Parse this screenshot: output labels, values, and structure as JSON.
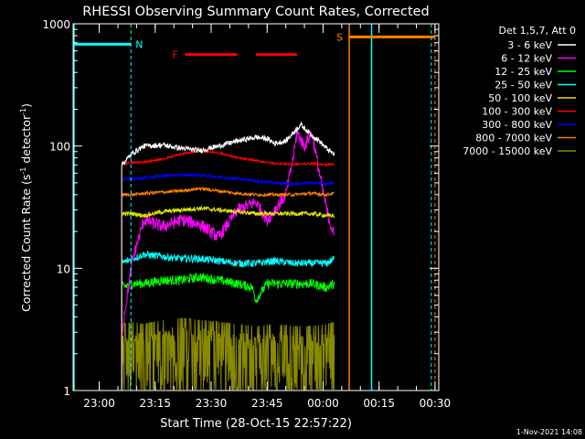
{
  "chart_data": {
    "type": "line",
    "title": "RHESSI Observing Summary Count Rates, Corrected",
    "xlabel": "Start Time (28-Oct-15 22:57:22)",
    "ylabel": "Corrected Count Rate (s⁻¹ detector⁻¹)",
    "ylabel_main": "Corrected Count Rate (s",
    "ylabel_sup1": "-1",
    "ylabel_mid": " detector",
    "ylabel_sup2": "-1",
    "ylabel_end": ")",
    "y_scale": "log",
    "xlim_min": [
      -4,
      94
    ],
    "ylim": [
      1,
      1000
    ],
    "x_ticks": [
      {
        "min": 3,
        "label": "23:00"
      },
      {
        "min": 18,
        "label": "23:15"
      },
      {
        "min": 33,
        "label": "23:30"
      },
      {
        "min": 48,
        "label": "23:45"
      },
      {
        "min": 63,
        "label": "00:00"
      },
      {
        "min": 78,
        "label": "00:15"
      },
      {
        "min": 93,
        "label": "00:30"
      }
    ],
    "y_ticks": [
      {
        "value": 1,
        "label": "1"
      },
      {
        "value": 10,
        "label": "10"
      },
      {
        "value": 100,
        "label": "100"
      },
      {
        "value": 1000,
        "label": "1000"
      }
    ],
    "legend_title": "Det 1,5,7, Att 0",
    "legend_position": "right",
    "series": [
      {
        "name": "3 - 6 keV",
        "color": "#ffffff",
        "x": [
          9,
          12,
          15,
          20,
          25,
          30,
          35,
          40,
          45,
          48,
          50,
          53,
          55,
          57,
          60,
          62,
          64,
          66
        ],
        "y": [
          70,
          88,
          100,
          102,
          96,
          92,
          100,
          110,
          118,
          115,
          105,
          110,
          128,
          150,
          122,
          110,
          95,
          85
        ]
      },
      {
        "name": "6 - 12 keV",
        "color": "#ff00ff",
        "x": [
          9,
          12,
          15,
          20,
          25,
          30,
          35,
          40,
          45,
          48,
          50,
          53,
          55,
          56,
          58,
          60,
          62,
          64,
          66
        ],
        "y": [
          3,
          12,
          25,
          22,
          25,
          23,
          18,
          30,
          35,
          25,
          30,
          40,
          80,
          130,
          100,
          130,
          60,
          30,
          18
        ]
      },
      {
        "name": "12 - 25 keV",
        "color": "#00ff00",
        "x": [
          9,
          12,
          15,
          20,
          25,
          30,
          35,
          40,
          44,
          45,
          48,
          52,
          56,
          60,
          64,
          66
        ],
        "y": [
          7,
          7.5,
          7.5,
          8,
          8,
          8.5,
          8,
          7.5,
          7,
          5.5,
          7.5,
          7.5,
          7.5,
          7.5,
          7,
          7.5
        ]
      },
      {
        "name": "25 - 50 keV",
        "color": "#00ffff",
        "x": [
          9,
          12,
          15,
          20,
          25,
          30,
          35,
          40,
          45,
          50,
          55,
          60,
          64,
          66
        ],
        "y": [
          11,
          12,
          13,
          12.5,
          12,
          12,
          11.5,
          11,
          11,
          11.5,
          11,
          11,
          11,
          12
        ]
      },
      {
        "name": "50 - 100 keV",
        "color": "#e6e600",
        "x": [
          9,
          12,
          15,
          20,
          25,
          30,
          35,
          40,
          45,
          50,
          55,
          60,
          64,
          66
        ],
        "y": [
          28,
          28,
          27,
          29,
          30,
          31,
          30,
          29,
          28,
          28,
          28,
          28,
          27,
          27
        ]
      },
      {
        "name": "100 - 300 keV",
        "color": "#ff0000",
        "x": [
          9,
          12,
          15,
          20,
          25,
          30,
          35,
          40,
          45,
          50,
          55,
          60,
          64,
          66
        ],
        "y": [
          72,
          73,
          74,
          78,
          86,
          92,
          88,
          80,
          76,
          72,
          71,
          72,
          70,
          72
        ]
      },
      {
        "name": "300 - 800 keV",
        "color": "#0000ff",
        "x": [
          9,
          12,
          15,
          20,
          25,
          30,
          35,
          40,
          45,
          50,
          55,
          60,
          64,
          66
        ],
        "y": [
          53,
          54,
          55,
          57,
          58,
          58,
          56,
          54,
          52,
          50,
          49,
          50,
          49,
          50
        ]
      },
      {
        "name": "800 - 7000 keV",
        "color": "#ff8000",
        "x": [
          9,
          12,
          15,
          20,
          25,
          30,
          35,
          40,
          45,
          50,
          55,
          60,
          64,
          66
        ],
        "y": [
          40,
          40,
          41,
          42,
          43,
          45,
          43,
          41,
          40,
          40,
          40,
          41,
          40,
          41
        ]
      },
      {
        "name": "7000 - 15000 keV",
        "color": "#8a8a00",
        "x": [
          9,
          12,
          15,
          20,
          25,
          30,
          35,
          40,
          45,
          50,
          55,
          60,
          64,
          66
        ],
        "y": [
          2.5,
          2.6,
          2.5,
          2.7,
          2.8,
          2.7,
          2.6,
          2.5,
          2.4,
          2.5,
          2.4,
          2.4,
          2.5,
          2.6
        ]
      }
    ],
    "annotations": [
      {
        "label": "N",
        "color": "#00ffff",
        "x_start": -4,
        "x_end": 11.5,
        "y": 680
      },
      {
        "label": "S",
        "color": "#ff8000",
        "x_start": 70,
        "x_end": 93,
        "y": 780
      },
      {
        "label": "F",
        "color": "#ff0000",
        "segments": [
          [
            26,
            40
          ],
          [
            45,
            56
          ]
        ],
        "y": 560
      }
    ],
    "cyan_solid_x": [
      -4,
      76
    ],
    "cyan_dashed_x": [
      11.5,
      92
    ],
    "orange_solid_x": [
      70
    ],
    "orange_dashed_x": [
      93
    ],
    "orange_block_end_x": 94
  },
  "footer": {
    "timestamp": "1-Nov-2021 14:08"
  }
}
